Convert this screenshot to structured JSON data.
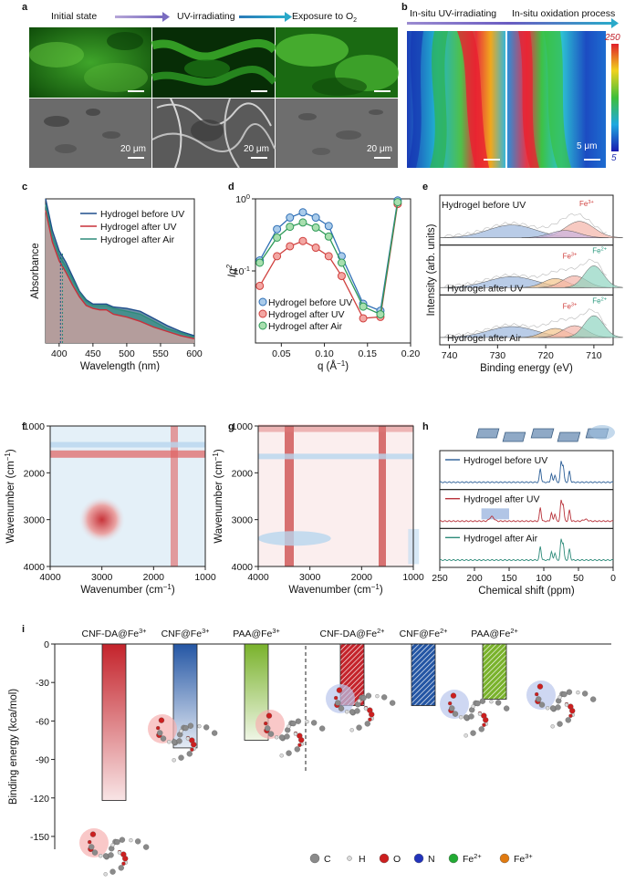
{
  "panel_letters": [
    "a",
    "b",
    "c",
    "d",
    "e",
    "f",
    "g",
    "h",
    "i"
  ],
  "panel_a": {
    "states": [
      "Initial state",
      "UV-irradiating",
      "Exposure to O"
    ],
    "o2_sub": "2",
    "scale_label": "20 μm"
  },
  "panel_b": {
    "labels": [
      "In-situ UV-irradiating",
      "In-situ oxidation process"
    ],
    "colorbar_max": "250",
    "colorbar_min": "5",
    "scale_label": "5 μm"
  },
  "chart_data": [
    {
      "id": "c",
      "type": "area",
      "xlabel": "Wavelength (nm)",
      "ylabel": "Absorbance",
      "xlim": [
        380,
        600
      ],
      "xticks": [
        400,
        450,
        500,
        550,
        600
      ],
      "series": [
        {
          "name": "Hydrogel before UV",
          "color": "#1f4e8c",
          "x": [
            380,
            390,
            400,
            410,
            420,
            430,
            440,
            450,
            460,
            470,
            480,
            500,
            520,
            540,
            560,
            580,
            600
          ],
          "y": [
            1.0,
            0.78,
            0.64,
            0.56,
            0.46,
            0.36,
            0.3,
            0.27,
            0.27,
            0.27,
            0.25,
            0.24,
            0.22,
            0.17,
            0.12,
            0.08,
            0.05
          ]
        },
        {
          "name": "Hydrogel after UV",
          "color": "#c9303a",
          "x": [
            380,
            390,
            400,
            410,
            420,
            430,
            440,
            450,
            460,
            470,
            480,
            500,
            520,
            540,
            560,
            580,
            600
          ],
          "y": [
            0.92,
            0.7,
            0.57,
            0.49,
            0.4,
            0.32,
            0.26,
            0.24,
            0.23,
            0.23,
            0.2,
            0.18,
            0.15,
            0.11,
            0.08,
            0.05,
            0.03
          ]
        },
        {
          "name": "Hydrogel after Air",
          "color": "#2e8b7a",
          "x": [
            380,
            390,
            400,
            410,
            420,
            430,
            440,
            450,
            460,
            470,
            480,
            500,
            520,
            540,
            560,
            580,
            600
          ],
          "y": [
            0.96,
            0.74,
            0.61,
            0.53,
            0.44,
            0.35,
            0.29,
            0.26,
            0.26,
            0.26,
            0.24,
            0.22,
            0.2,
            0.15,
            0.1,
            0.07,
            0.04
          ]
        }
      ]
    },
    {
      "id": "d",
      "type": "line",
      "xlabel": "q (Å",
      "xlabel_sup": "−1",
      "xlabel_end": ")",
      "ylabel": "Iq",
      "ylabel_sup": "2",
      "yscale": "log",
      "xlim": [
        0.02,
        0.2
      ],
      "ylim": [
        0.01,
        1
      ],
      "xticks": [
        "0.05",
        "0.10",
        "0.15",
        "0.20"
      ],
      "ytick_top": "10",
      "ytick_top_sup": "0",
      "ytick_mid": "10",
      "ytick_mid_sup": "-1",
      "series": [
        {
          "name": "Hydrogel before UV",
          "color": "#2f6fb5",
          "fill": "#a9cbea",
          "x": [
            0.025,
            0.045,
            0.06,
            0.075,
            0.09,
            0.105,
            0.12,
            0.145,
            0.165,
            0.185
          ],
          "y": [
            0.14,
            0.38,
            0.55,
            0.65,
            0.55,
            0.42,
            0.16,
            0.035,
            0.028,
            0.95
          ]
        },
        {
          "name": "Hydrogel after UV",
          "color": "#d0403e",
          "fill": "#f3a7a3",
          "x": [
            0.025,
            0.045,
            0.06,
            0.075,
            0.09,
            0.105,
            0.12,
            0.145,
            0.165,
            0.185
          ],
          "y": [
            0.062,
            0.16,
            0.22,
            0.26,
            0.21,
            0.16,
            0.085,
            0.022,
            0.023,
            0.85
          ]
        },
        {
          "name": "Hydrogel after Air",
          "color": "#2e9a58",
          "fill": "#a8dfae",
          "x": [
            0.025,
            0.045,
            0.06,
            0.075,
            0.09,
            0.105,
            0.12,
            0.145,
            0.165,
            0.185
          ],
          "y": [
            0.13,
            0.29,
            0.41,
            0.47,
            0.4,
            0.3,
            0.13,
            0.032,
            0.025,
            0.9
          ]
        }
      ]
    },
    {
      "id": "e",
      "type": "line",
      "xlabel": "Binding energy (eV)",
      "ylabel": "Intensity (arb. units)",
      "xlim": [
        742,
        706
      ],
      "xticks": [
        740,
        730,
        720,
        710
      ],
      "series": [
        {
          "name": "Hydrogel before UV",
          "annotations": [
            "Fe"
          ],
          "annotation_sups": [
            "3+"
          ]
        },
        {
          "name": "Hydrogel after UV",
          "annotations": [
            "Fe",
            "Fe"
          ],
          "annotation_sups": [
            "3+",
            "2+"
          ]
        },
        {
          "name": "Hydrogel after Air",
          "annotations": [
            "Fe",
            "Fe"
          ],
          "annotation_sups": [
            "3+",
            "2+"
          ]
        }
      ]
    },
    {
      "id": "f",
      "type": "heatmap",
      "xlabel": "Wavenumber (cm",
      "ylabel": "Wavenumber (cm",
      "label_sup": "−1",
      "label_end": ")",
      "xticks": [
        4000,
        3000,
        2000,
        1000
      ],
      "yticks": [
        1000,
        2000,
        3000,
        4000
      ]
    },
    {
      "id": "g",
      "type": "heatmap",
      "xlabel": "Wavenumber (cm",
      "ylabel": "Wavenumber (cm",
      "label_sup": "−1",
      "label_end": ")",
      "xticks": [
        4000,
        3000,
        2000,
        1000
      ],
      "yticks": [
        1000,
        2000,
        3000,
        4000
      ]
    },
    {
      "id": "h",
      "type": "line",
      "xlabel": "Chemical shift (ppm)",
      "xlim": [
        250,
        0
      ],
      "xticks": [
        250,
        200,
        150,
        100,
        50,
        0
      ],
      "series": [
        {
          "name": "Hydrogel before UV",
          "color": "#2a5d96"
        },
        {
          "name": "Hydrogel after UV",
          "color": "#b8323a"
        },
        {
          "name": "Hydrogel after Air",
          "color": "#2e8b7a"
        }
      ]
    },
    {
      "id": "i",
      "type": "bar",
      "ylabel": "Binding energy (kca/mol)",
      "ylim": [
        -160,
        0
      ],
      "yticks": [
        0,
        -30,
        -60,
        -90,
        -120,
        -150
      ],
      "categories": [
        {
          "base": "CNF-DA@Fe",
          "sup": "3+"
        },
        {
          "base": "CNF@Fe",
          "sup": "3+"
        },
        {
          "base": "PAA@Fe",
          "sup": "3+"
        },
        {
          "base": "CNF-DA@Fe",
          "sup": "2+"
        },
        {
          "base": "CNF@Fe",
          "sup": "2+"
        },
        {
          "base": "PAA@Fe",
          "sup": "2+"
        }
      ],
      "values": [
        -122,
        -81,
        -75,
        -48,
        -48,
        -43
      ],
      "colors": [
        "#c4232b",
        "#2456a4",
        "#79b22b",
        "#c4232b",
        "#2456a4",
        "#79b22b"
      ],
      "hatched": [
        false,
        false,
        false,
        true,
        true,
        true
      ],
      "legend": [
        {
          "label": "C",
          "color": "#8a8a8a"
        },
        {
          "label": "H",
          "color": "#dcdcdc"
        },
        {
          "label": "O",
          "color": "#cc1f1f"
        },
        {
          "label": "N",
          "color": "#2233bb"
        },
        {
          "label": "Fe",
          "sup": "2+",
          "color": "#22aa33"
        },
        {
          "label": "Fe",
          "sup": "3+",
          "color": "#e07a10"
        }
      ]
    }
  ]
}
